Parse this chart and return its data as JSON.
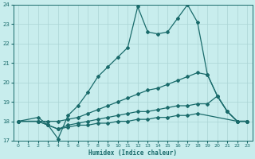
{
  "xlabel": "Humidex (Indice chaleur)",
  "ylabel": "",
  "xlim": [
    -0.5,
    23.5
  ],
  "ylim": [
    17,
    24
  ],
  "xticks": [
    0,
    1,
    2,
    3,
    4,
    5,
    6,
    7,
    8,
    9,
    10,
    11,
    12,
    13,
    14,
    15,
    16,
    17,
    18,
    19,
    20,
    21,
    22,
    23
  ],
  "yticks": [
    17,
    18,
    19,
    20,
    21,
    22,
    23,
    24
  ],
  "background_color": "#c8eded",
  "grid_color": "#aad4d4",
  "line_color": "#1a6b6b",
  "line1_x": [
    0,
    2,
    3,
    4,
    5,
    6,
    7,
    8,
    9,
    10,
    11,
    12,
    13,
    14,
    15,
    16,
    17,
    18,
    19,
    20,
    21,
    22,
    23
  ],
  "line1_y": [
    18.0,
    18.2,
    17.8,
    17.1,
    18.3,
    18.8,
    19.5,
    20.3,
    20.8,
    21.3,
    21.8,
    23.9,
    22.6,
    22.5,
    22.6,
    23.3,
    24.0,
    23.1,
    20.4,
    19.3,
    18.5,
    18.0,
    18.0
  ],
  "line2_x": [
    0,
    2,
    3,
    4,
    5,
    6,
    7,
    8,
    9,
    10,
    11,
    12,
    13,
    14,
    15,
    16,
    17,
    18,
    19,
    20,
    21,
    22,
    23
  ],
  "line2_y": [
    18.0,
    18.0,
    18.0,
    18.0,
    18.1,
    18.2,
    18.4,
    18.6,
    18.8,
    19.0,
    19.2,
    19.4,
    19.6,
    19.7,
    19.9,
    20.1,
    20.3,
    20.5,
    20.4,
    19.3,
    18.5,
    18.0,
    18.0
  ],
  "line3_x": [
    0,
    2,
    3,
    4,
    5,
    6,
    7,
    8,
    9,
    10,
    11,
    12,
    13,
    14,
    15,
    16,
    17,
    18,
    19,
    20,
    21,
    22,
    23
  ],
  "line3_y": [
    18.0,
    18.0,
    17.8,
    17.6,
    17.8,
    17.9,
    18.0,
    18.1,
    18.2,
    18.3,
    18.4,
    18.5,
    18.5,
    18.6,
    18.7,
    18.8,
    18.8,
    18.9,
    18.9,
    19.3,
    18.5,
    18.0,
    18.0
  ],
  "line4_x": [
    0,
    2,
    3,
    4,
    5,
    6,
    7,
    8,
    9,
    10,
    11,
    12,
    13,
    14,
    15,
    16,
    17,
    18,
    22,
    23
  ],
  "line4_y": [
    18.0,
    18.0,
    17.8,
    17.6,
    17.7,
    17.8,
    17.8,
    17.9,
    17.9,
    18.0,
    18.0,
    18.1,
    18.1,
    18.2,
    18.2,
    18.3,
    18.3,
    18.4,
    18.0,
    18.0
  ]
}
